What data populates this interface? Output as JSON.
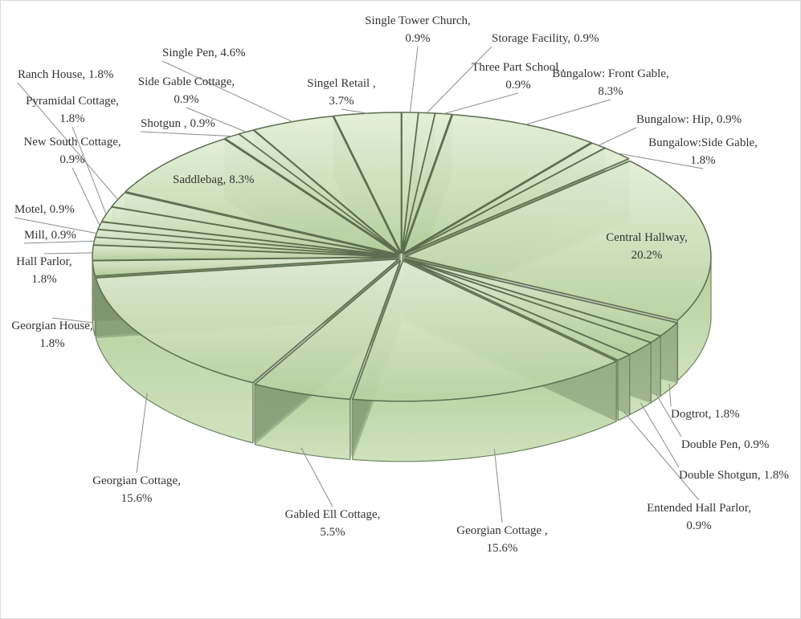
{
  "chart_data": {
    "type": "pie3d",
    "categories": [
      "Single Tower Church,",
      "Storage Facility,",
      "Three Part School ,",
      "Bungalow: Front Gable,",
      "Bungalow: Hip,",
      "Bungalow:Side Gable,",
      "Central Hallway,",
      "Dogtrot,",
      "Double Pen,",
      "Double Shotgun,",
      "Entended Hall Parlor,",
      "Georgian Cottage ,",
      "Gabled Ell Cottage,",
      "Georgian Cottage,",
      "Georgian House,",
      "Hall Parlor,",
      "Mill,",
      "Motel,",
      "New South Cottage,",
      "Pyramidal Cottage,",
      "Ranch House,",
      "Saddlebag,",
      "Shotgun ,",
      "Side Gable Cottage,",
      "Single Pen,",
      "Singel Retail ,"
    ],
    "values": [
      0.9,
      0.9,
      0.9,
      8.3,
      0.9,
      1.8,
      20.2,
      1.8,
      0.9,
      1.8,
      0.9,
      15.6,
      5.5,
      15.6,
      1.8,
      1.8,
      0.9,
      0.9,
      0.9,
      1.8,
      1.8,
      8.3,
      0.9,
      0.9,
      4.6,
      3.7
    ],
    "value_labels": [
      "0.9%",
      "0.9%",
      "0.9%",
      "8.3%",
      "0.9%",
      "1.8%",
      "20.2%",
      "1.8%",
      "0.9%",
      "1.8%",
      "0.9%",
      "15.6%",
      "5.5%",
      "15.6%",
      "1.8%",
      "1.8%",
      "0.9%",
      "0.9%",
      "0.9%",
      "1.8%",
      "1.8%",
      "8.3%",
      "0.9%",
      "0.9%",
      "4.6%",
      "3.7%"
    ],
    "color": "#c3d9ad"
  }
}
